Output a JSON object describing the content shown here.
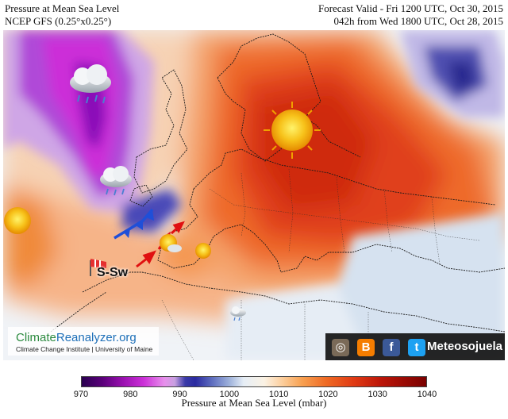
{
  "header": {
    "left_line1": "Pressure at Mean Sea Level",
    "left_line2": "NCEP GFS (0.25°x0.25°)",
    "right_line1": "Forecast Valid - Fri 1200 UTC, Oct 30, 2015",
    "right_line2": "042h from Wed 1800 UTC, Oct 28, 2015"
  },
  "colorbar": {
    "ticks": [
      "970",
      "980",
      "990",
      "1000",
      "1010",
      "1020",
      "1030",
      "1040"
    ],
    "label": "Pressure at Mean Sea Level (mbar)"
  },
  "annotations": {
    "wind_label": "S-Sw"
  },
  "logos": {
    "brand_part1": "Climate",
    "brand_part2": "Reanalyzer.org",
    "brand_sub": "Climate Change Institute | University of Maine",
    "social_brand": "Meteosojuela"
  },
  "icons": [
    "sun-icon",
    "rain-cloud-icon",
    "windsock-icon",
    "cold-front-icon",
    "wind-arrow-icon",
    "instagram-icon",
    "blogger-icon",
    "facebook-icon",
    "twitter-icon"
  ]
}
